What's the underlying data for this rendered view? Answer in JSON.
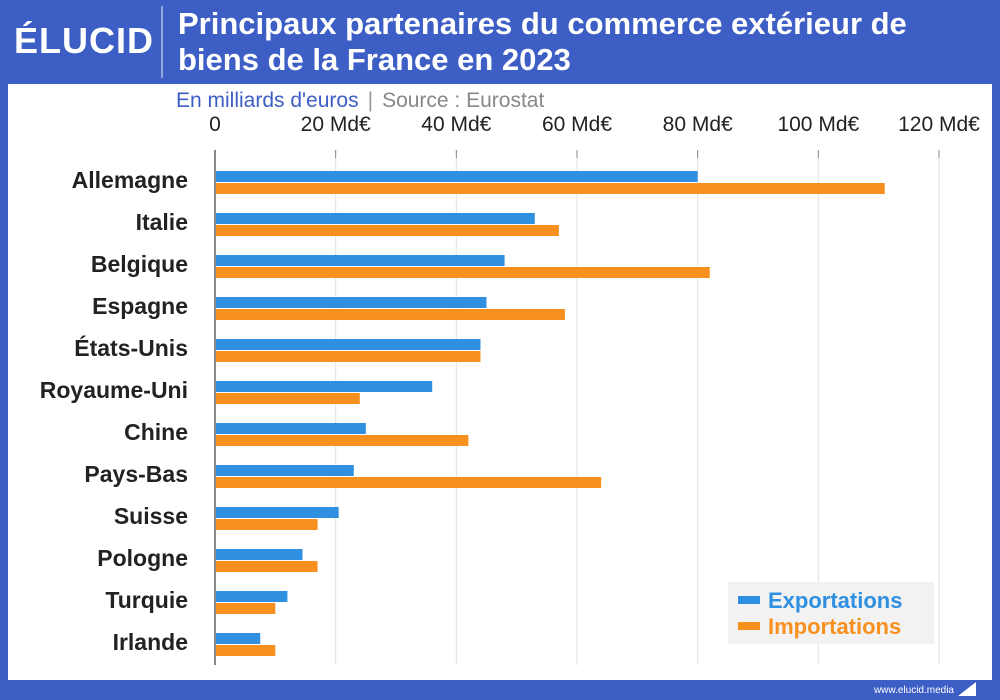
{
  "header": {
    "logo": "ÉLUCID",
    "title_line1": "Principaux partenaires du commerce extérieur de",
    "title_line2": "biens de la France en 2023"
  },
  "subtitle": {
    "unit": "En milliards d'euros",
    "separator": "|",
    "source": "Source : Eurostat"
  },
  "footer": {
    "site": "www.elucid.media"
  },
  "colors": {
    "exports": "#2f8fe0",
    "imports": "#f7901e",
    "axis": "#888888",
    "grid": "#e2e2e2",
    "label": "#222222"
  },
  "chart_data": {
    "type": "bar",
    "orientation": "horizontal",
    "categories": [
      "Allemagne",
      "Italie",
      "Belgique",
      "Espagne",
      "États-Unis",
      "Royaume-Uni",
      "Chine",
      "Pays-Bas",
      "Suisse",
      "Pologne",
      "Turquie",
      "Irlande"
    ],
    "series": [
      {
        "name": "Exportations",
        "values": [
          80,
          53,
          48,
          45,
          44,
          36,
          25,
          23,
          20.5,
          14.5,
          12,
          7.5
        ]
      },
      {
        "name": "Importations",
        "values": [
          111,
          57,
          82,
          58,
          44,
          24,
          42,
          64,
          17,
          17,
          10,
          10
        ]
      }
    ],
    "x_ticks": [
      "0",
      "20 Md€",
      "40 Md€",
      "60 Md€",
      "80 Md€",
      "100 Md€",
      "120 Md€"
    ],
    "xlim": [
      0,
      120
    ],
    "grid": true,
    "legend_position": "bottom-right"
  }
}
